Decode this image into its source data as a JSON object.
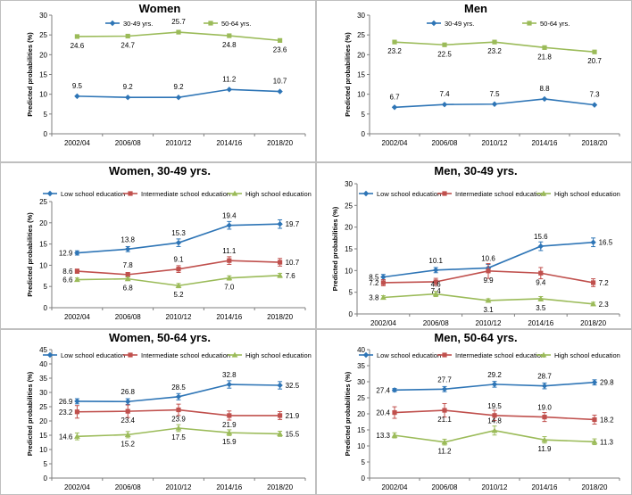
{
  "colors": {
    "blue": "#2E75B6",
    "red": "#C0504D",
    "green": "#9BBB59",
    "axis": "#7f7f7f",
    "panel_border": "#bfbfbf"
  },
  "chart_data": [
    {
      "id": "women",
      "type": "line",
      "title": "Women",
      "ylabel": "Predicted probabilities (%)",
      "ylim": [
        0,
        30
      ],
      "yticks": [
        0,
        5,
        10,
        15,
        20,
        25,
        30
      ],
      "categories": [
        "2002/04",
        "2006/08",
        "2010/12",
        "2014/16",
        "2018/20"
      ],
      "legend_position": "top-left",
      "series": [
        {
          "name": "30-49 yrs.",
          "color_key": "blue",
          "marker": "diamond",
          "error_bars": false,
          "values": [
            9.5,
            9.2,
            9.2,
            11.2,
            10.7
          ],
          "labels": [
            "9.5",
            "9.2",
            "9.2",
            "11.2",
            "10.7"
          ]
        },
        {
          "name": "50-64 yrs.",
          "color_key": "green",
          "marker": "square",
          "error_bars": false,
          "values": [
            24.6,
            24.7,
            25.7,
            24.8,
            23.6
          ],
          "labels": [
            "24.6",
            "24.7",
            "25.7",
            "24.8",
            "23.6"
          ]
        }
      ]
    },
    {
      "id": "men",
      "type": "line",
      "title": "Men",
      "ylabel": "Predicted probabilities (%)",
      "ylim": [
        0,
        30
      ],
      "yticks": [
        0,
        5,
        10,
        15,
        20,
        25,
        30
      ],
      "categories": [
        "2002/04",
        "2006/08",
        "2010/12",
        "2014/16",
        "2018/20"
      ],
      "legend_position": "top-left",
      "series": [
        {
          "name": "30-49 yrs.",
          "color_key": "blue",
          "marker": "diamond",
          "error_bars": false,
          "values": [
            6.7,
            7.4,
            7.5,
            8.8,
            7.3
          ],
          "labels": [
            "6.7",
            "7.4",
            "7.5",
            "8.8",
            "7.3"
          ]
        },
        {
          "name": "50-64 yrs.",
          "color_key": "green",
          "marker": "square",
          "error_bars": false,
          "values": [
            23.2,
            22.5,
            23.2,
            21.8,
            20.7
          ],
          "labels": [
            "23.2",
            "22.5",
            "23.2",
            "21.8",
            "20.7"
          ]
        }
      ]
    },
    {
      "id": "women-30-49",
      "type": "line",
      "title": "Women, 30-49 yrs.",
      "ylabel": "Predicted probabilities (%)",
      "ylim": [
        0,
        25
      ],
      "yticks": [
        0,
        5,
        10,
        15,
        20,
        25
      ],
      "categories": [
        "2002/04",
        "2006/08",
        "2010/12",
        "2014/16",
        "2018/20"
      ],
      "legend_position": "top",
      "series": [
        {
          "name": "Low school education",
          "color_key": "blue",
          "marker": "diamond",
          "error_bars": true,
          "values": [
            12.9,
            13.8,
            15.3,
            19.4,
            19.7
          ],
          "errors": [
            0.5,
            0.6,
            0.9,
            0.9,
            1.0
          ],
          "labels": [
            "12.9",
            "13.8",
            "15.3",
            "19.4",
            "19.7"
          ]
        },
        {
          "name": "Intermediate school education",
          "color_key": "red",
          "marker": "square",
          "error_bars": true,
          "values": [
            8.6,
            7.8,
            9.1,
            11.1,
            10.7
          ],
          "errors": [
            0.5,
            0.5,
            0.8,
            0.9,
            0.9
          ],
          "labels": [
            "8.6",
            "7.8",
            "9.1",
            "11.1",
            "10.7"
          ]
        },
        {
          "name": "High school education",
          "color_key": "green",
          "marker": "triangle",
          "error_bars": true,
          "values": [
            6.6,
            6.8,
            5.2,
            7.0,
            7.6
          ],
          "errors": [
            0.4,
            0.4,
            0.5,
            0.5,
            0.5
          ],
          "labels": [
            "6.6",
            "6.8",
            "5.2",
            "7.0",
            "7.6"
          ]
        }
      ]
    },
    {
      "id": "men-30-49",
      "type": "line",
      "title": "Men, 30-49 yrs.",
      "ylabel": "Predicted probabilities (%)",
      "ylim": [
        0,
        30
      ],
      "yticks": [
        0,
        5,
        10,
        15,
        20,
        25,
        30
      ],
      "categories": [
        "2002/04",
        "2006/08",
        "2010/12",
        "2014/16",
        "2018/20"
      ],
      "legend_position": "top",
      "series": [
        {
          "name": "Low school education",
          "color_key": "blue",
          "marker": "diamond",
          "error_bars": true,
          "values": [
            8.5,
            10.1,
            10.6,
            15.6,
            16.5
          ],
          "errors": [
            0.6,
            0.6,
            0.8,
            1.0,
            1.0
          ],
          "labels": [
            "8.5",
            "10.1",
            "10.6",
            "15.6",
            "16.5"
          ]
        },
        {
          "name": "Intermediate school education",
          "color_key": "red",
          "marker": "square",
          "error_bars": true,
          "values": [
            7.2,
            7.4,
            9.9,
            9.4,
            7.2
          ],
          "errors": [
            0.7,
            0.8,
            1.7,
            1.3,
            0.9
          ],
          "labels": [
            "7.2",
            "7.4",
            "9.9",
            "9.4",
            "7.2"
          ]
        },
        {
          "name": "High school education",
          "color_key": "green",
          "marker": "triangle",
          "error_bars": true,
          "values": [
            3.8,
            4.6,
            3.1,
            3.5,
            2.3
          ],
          "errors": [
            0.4,
            0.6,
            0.4,
            0.5,
            0.4
          ],
          "labels": [
            "3.8",
            "4.6",
            "3.1",
            "3.5",
            "2.3"
          ]
        }
      ]
    },
    {
      "id": "women-50-64",
      "type": "line",
      "title": "Women, 50-64 yrs.",
      "ylabel": "Predicted probabilities  (%)",
      "ylim": [
        0,
        45
      ],
      "yticks": [
        0,
        5,
        10,
        15,
        20,
        25,
        30,
        35,
        40,
        45
      ],
      "categories": [
        "2002/04",
        "2006/08",
        "2010/12",
        "2014/16",
        "2018/20"
      ],
      "legend_position": "top",
      "series": [
        {
          "name": "Low school education",
          "color_key": "blue",
          "marker": "diamond",
          "error_bars": true,
          "values": [
            26.9,
            26.8,
            28.5,
            32.8,
            32.5
          ],
          "errors": [
            0.9,
            1.0,
            1.1,
            1.3,
            1.3
          ],
          "labels": [
            "26.9",
            "26.8",
            "28.5",
            "32.8",
            "32.5"
          ]
        },
        {
          "name": "Intermediate school education",
          "color_key": "red",
          "marker": "square",
          "error_bars": true,
          "values": [
            23.2,
            23.4,
            23.9,
            21.9,
            21.9
          ],
          "errors": [
            2.2,
            2.2,
            2.0,
            1.6,
            1.4
          ],
          "labels": [
            "23.2",
            "23.4",
            "23.9",
            "21.9",
            "21.9"
          ]
        },
        {
          "name": "High school education",
          "color_key": "green",
          "marker": "triangle",
          "error_bars": true,
          "values": [
            14.6,
            15.2,
            17.5,
            15.9,
            15.5
          ],
          "errors": [
            1.2,
            1.1,
            1.2,
            1.0,
            0.9
          ],
          "labels": [
            "14.6",
            "15.2",
            "17.5",
            "15.9",
            "15.5"
          ]
        }
      ]
    },
    {
      "id": "men-50-64",
      "type": "line",
      "title": "Men, 50-64 yrs.",
      "ylabel": "Predicted probabilities (%)",
      "ylim": [
        0,
        40
      ],
      "yticks": [
        0,
        5,
        10,
        15,
        20,
        25,
        30,
        35,
        40
      ],
      "categories": [
        "2002/04",
        "2006/08",
        "2010/12",
        "2014/16",
        "2018/20"
      ],
      "legend_position": "top",
      "series": [
        {
          "name": "Low school education",
          "color_key": "blue",
          "marker": "diamond",
          "error_bars": true,
          "values": [
            27.4,
            27.7,
            29.2,
            28.7,
            29.8
          ],
          "errors": [
            0.5,
            0.8,
            0.9,
            0.9,
            0.8
          ],
          "labels": [
            "27.4",
            "27.7",
            "29.2",
            "28.7",
            "29.8"
          ]
        },
        {
          "name": "Intermediate school education",
          "color_key": "red",
          "marker": "square",
          "error_bars": true,
          "values": [
            20.4,
            21.1,
            19.5,
            19.0,
            18.2
          ],
          "errors": [
            1.8,
            2.1,
            1.6,
            1.4,
            1.4
          ],
          "labels": [
            "20.4",
            "21.1",
            "19.5",
            "19.0",
            "18.2"
          ]
        },
        {
          "name": "High school education",
          "color_key": "green",
          "marker": "triangle",
          "error_bars": true,
          "values": [
            13.3,
            11.2,
            14.8,
            11.9,
            11.3
          ],
          "errors": [
            0.8,
            0.9,
            1.4,
            1.0,
            0.9
          ],
          "labels": [
            "13.3",
            "11.2",
            "14.8",
            "11.9",
            "11.3"
          ]
        }
      ]
    }
  ]
}
